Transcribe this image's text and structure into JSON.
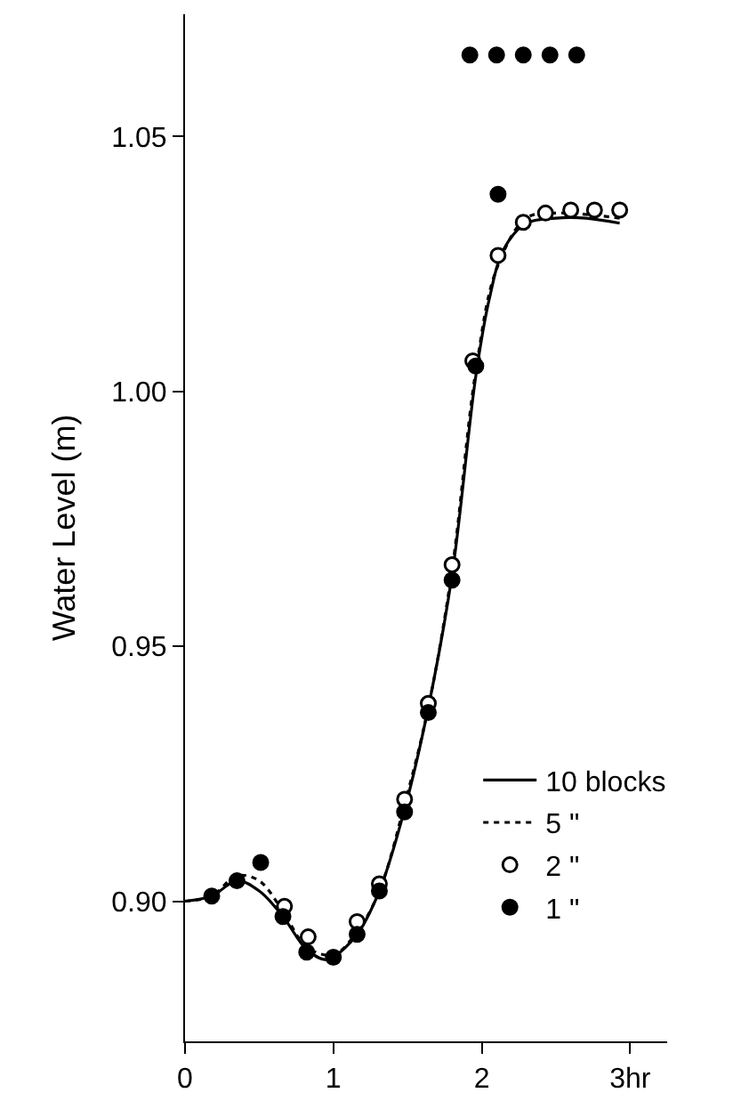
{
  "chart_data": {
    "type": "line",
    "ylabel": "Water Level (m)",
    "xlim": [
      0,
      3.25
    ],
    "ylim": [
      0.8725,
      1.074
    ],
    "xticks": [
      0,
      1,
      2,
      {
        "value": 3,
        "label": "3hr"
      }
    ],
    "yticks": [
      {
        "value": 0.9,
        "label": "0.90"
      },
      {
        "value": 0.95,
        "label": "0.95"
      },
      {
        "value": 1.0,
        "label": "1.00"
      },
      {
        "value": 1.05,
        "label": "1.05"
      }
    ],
    "legend": "bottom right",
    "series": [
      {
        "name": "10 blocks",
        "color": "#000000",
        "marker": "none",
        "line_style": "solid",
        "x": [
          0,
          0.18,
          0.35,
          0.5,
          0.66,
          0.82,
          0.95,
          1.0,
          1.16,
          1.31,
          1.48,
          1.64,
          1.8,
          1.96,
          2.05,
          2.15,
          2.3,
          2.5,
          2.7,
          2.93
        ],
        "values": [
          0.9,
          0.901,
          0.904,
          0.902,
          0.897,
          0.8905,
          0.8885,
          0.889,
          0.8935,
          0.902,
          0.918,
          0.938,
          0.964,
          1.003,
          1.018,
          1.028,
          1.033,
          1.034,
          1.034,
          1.033
        ]
      },
      {
        "name": "5 \"",
        "color": "#000000",
        "marker": "none",
        "line_style": "dotted",
        "x": [
          0,
          0.18,
          0.35,
          0.5,
          0.66,
          0.82,
          1.0,
          1.16,
          1.31,
          1.48,
          1.64,
          1.8,
          1.96,
          2.1,
          2.3,
          2.5,
          2.93
        ],
        "values": [
          0.9,
          0.901,
          0.905,
          0.904,
          0.898,
          0.891,
          0.8895,
          0.894,
          0.902,
          0.919,
          0.938,
          0.965,
          1.004,
          1.024,
          1.034,
          1.035,
          1.034
        ]
      },
      {
        "name": "2 \"",
        "type": "scatter",
        "color": "#ffffff",
        "marker": "circle",
        "x": [
          0.67,
          0.83,
          1.16,
          1.31,
          1.48,
          1.64,
          1.8,
          1.94,
          2.11,
          2.28,
          2.43,
          2.6,
          2.76,
          2.93
        ],
        "values": [
          0.899,
          0.893,
          0.896,
          0.9034,
          0.92,
          0.9388,
          0.966,
          1.006,
          1.0267,
          1.0332,
          1.035,
          1.0356,
          1.0356,
          1.0356
        ]
      },
      {
        "name": "1 \"",
        "type": "scatter",
        "color": "#000000",
        "marker": "circle",
        "x": [
          0.18,
          0.35,
          0.51,
          0.66,
          0.82,
          1.0,
          1.16,
          1.31,
          1.48,
          1.64,
          1.8,
          1.96,
          2.11,
          1.92,
          2.1,
          2.28,
          2.46,
          2.64
        ],
        "values": [
          0.901,
          0.904,
          0.9076,
          0.897,
          0.89,
          0.889,
          0.8935,
          0.902,
          0.9175,
          0.937,
          0.963,
          1.005,
          1.0387,
          1.066,
          1.066,
          1.066,
          1.066,
          1.066
        ]
      }
    ]
  }
}
